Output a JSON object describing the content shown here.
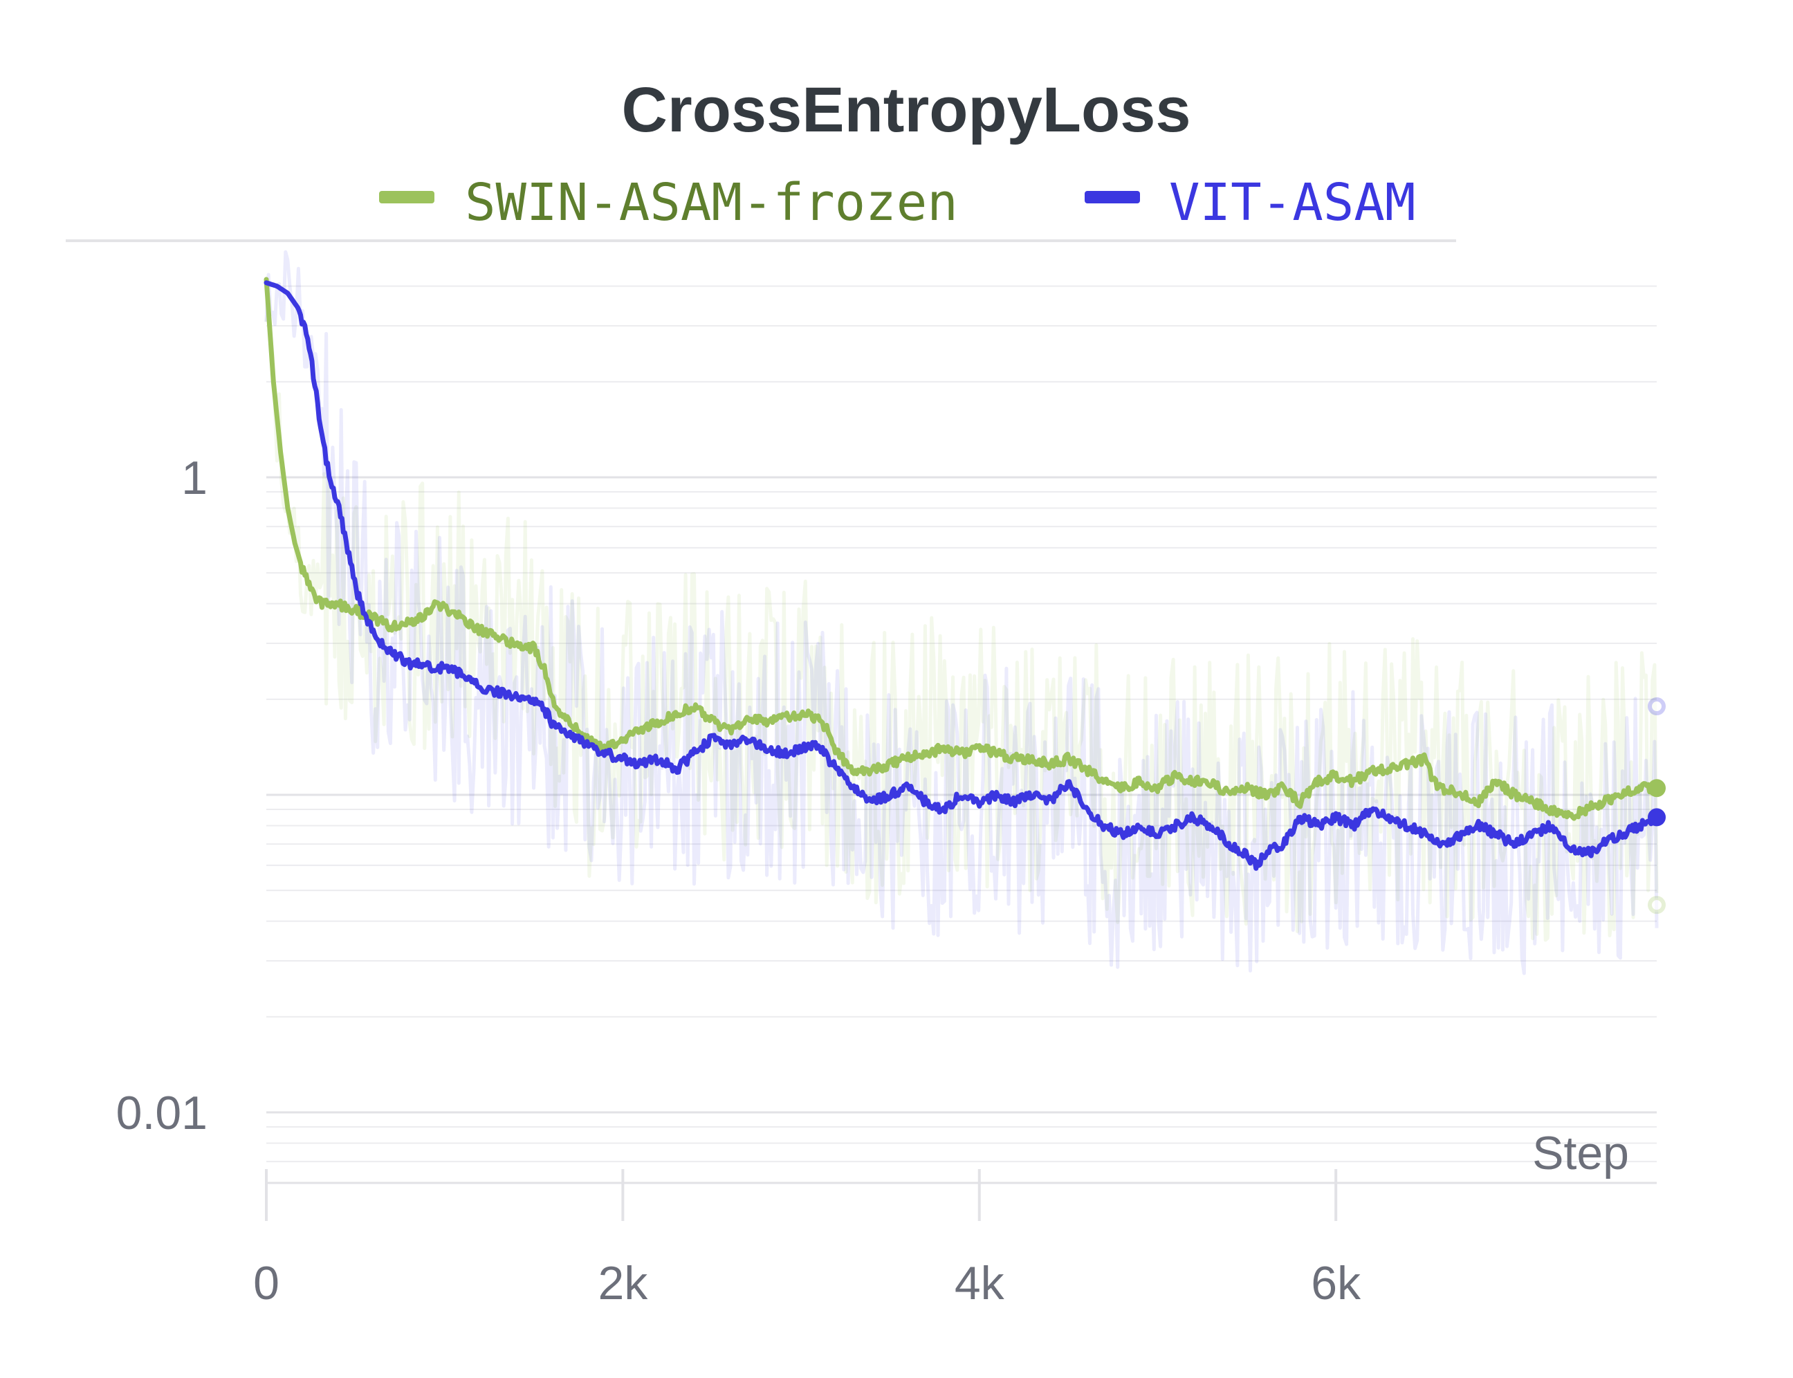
{
  "chart_data": {
    "type": "line",
    "title": "CrossEntropyLoss",
    "xlabel": "Step",
    "ylabel": "",
    "y_scale": "log",
    "xlim": [
      0,
      7800
    ],
    "ylim": [
      0.0055,
      6
    ],
    "x_ticks": [
      {
        "value": 0,
        "label": "0"
      },
      {
        "value": 2000,
        "label": "2k"
      },
      {
        "value": 4000,
        "label": "4k"
      },
      {
        "value": 6000,
        "label": "6k"
      }
    ],
    "y_ticks": [
      {
        "value": 1,
        "label": "1"
      },
      {
        "value": 0.01,
        "label": "0.01"
      }
    ],
    "grid": true,
    "legend_position": "top",
    "series": [
      {
        "name": "SWIN-ASAM-frozen",
        "color": "#9cc25c",
        "label_color": "#5f7f2e",
        "smoothed": [
          [
            0,
            4.2
          ],
          [
            40,
            2.0
          ],
          [
            80,
            1.2
          ],
          [
            120,
            0.8
          ],
          [
            160,
            0.62
          ],
          [
            200,
            0.52
          ],
          [
            240,
            0.46
          ],
          [
            280,
            0.41
          ],
          [
            320,
            0.4
          ],
          [
            400,
            0.4
          ],
          [
            500,
            0.38
          ],
          [
            600,
            0.36
          ],
          [
            700,
            0.34
          ],
          [
            800,
            0.35
          ],
          [
            900,
            0.37
          ],
          [
            960,
            0.4
          ],
          [
            1020,
            0.38
          ],
          [
            1100,
            0.36
          ],
          [
            1200,
            0.33
          ],
          [
            1300,
            0.31
          ],
          [
            1400,
            0.3
          ],
          [
            1500,
            0.29
          ],
          [
            1560,
            0.25
          ],
          [
            1620,
            0.19
          ],
          [
            1700,
            0.17
          ],
          [
            1800,
            0.15
          ],
          [
            1900,
            0.14
          ],
          [
            2000,
            0.15
          ],
          [
            2100,
            0.16
          ],
          [
            2200,
            0.17
          ],
          [
            2300,
            0.18
          ],
          [
            2400,
            0.19
          ],
          [
            2500,
            0.17
          ],
          [
            2600,
            0.16
          ],
          [
            2700,
            0.175
          ],
          [
            2800,
            0.17
          ],
          [
            2900,
            0.175
          ],
          [
            3000,
            0.18
          ],
          [
            3080,
            0.175
          ],
          [
            3150,
            0.16
          ],
          [
            3200,
            0.135
          ],
          [
            3300,
            0.12
          ],
          [
            3400,
            0.12
          ],
          [
            3500,
            0.125
          ],
          [
            3600,
            0.13
          ],
          [
            3700,
            0.135
          ],
          [
            3800,
            0.14
          ],
          [
            3900,
            0.135
          ],
          [
            4000,
            0.14
          ],
          [
            4100,
            0.135
          ],
          [
            4200,
            0.13
          ],
          [
            4300,
            0.13
          ],
          [
            4400,
            0.125
          ],
          [
            4500,
            0.13
          ],
          [
            4600,
            0.12
          ],
          [
            4700,
            0.11
          ],
          [
            4800,
            0.105
          ],
          [
            4900,
            0.11
          ],
          [
            5000,
            0.105
          ],
          [
            5100,
            0.115
          ],
          [
            5200,
            0.11
          ],
          [
            5300,
            0.11
          ],
          [
            5400,
            0.1
          ],
          [
            5500,
            0.105
          ],
          [
            5600,
            0.1
          ],
          [
            5700,
            0.105
          ],
          [
            5800,
            0.095
          ],
          [
            5900,
            0.11
          ],
          [
            6000,
            0.115
          ],
          [
            6100,
            0.11
          ],
          [
            6200,
            0.12
          ],
          [
            6300,
            0.12
          ],
          [
            6400,
            0.125
          ],
          [
            6500,
            0.13
          ],
          [
            6550,
            0.11
          ],
          [
            6600,
            0.105
          ],
          [
            6700,
            0.1
          ],
          [
            6800,
            0.095
          ],
          [
            6900,
            0.11
          ],
          [
            7000,
            0.1
          ],
          [
            7100,
            0.095
          ],
          [
            7200,
            0.09
          ],
          [
            7300,
            0.085
          ],
          [
            7400,
            0.09
          ],
          [
            7500,
            0.095
          ],
          [
            7600,
            0.1
          ],
          [
            7700,
            0.105
          ],
          [
            7800,
            0.105
          ]
        ],
        "last_raw_value": 0.045
      },
      {
        "name": "VIT-ASAM",
        "color": "#3b37e0",
        "label_color": "#3b37e0",
        "smoothed": [
          [
            0,
            4.1
          ],
          [
            60,
            4.0
          ],
          [
            120,
            3.8
          ],
          [
            180,
            3.4
          ],
          [
            230,
            2.8
          ],
          [
            270,
            2.0
          ],
          [
            300,
            1.5
          ],
          [
            340,
            1.1
          ],
          [
            380,
            0.9
          ],
          [
            420,
            0.75
          ],
          [
            460,
            0.58
          ],
          [
            500,
            0.45
          ],
          [
            560,
            0.36
          ],
          [
            620,
            0.31
          ],
          [
            700,
            0.28
          ],
          [
            800,
            0.26
          ],
          [
            900,
            0.255
          ],
          [
            1000,
            0.25
          ],
          [
            1100,
            0.24
          ],
          [
            1200,
            0.22
          ],
          [
            1300,
            0.21
          ],
          [
            1400,
            0.205
          ],
          [
            1500,
            0.2
          ],
          [
            1550,
            0.19
          ],
          [
            1600,
            0.17
          ],
          [
            1700,
            0.155
          ],
          [
            1800,
            0.145
          ],
          [
            1900,
            0.135
          ],
          [
            2000,
            0.13
          ],
          [
            2100,
            0.125
          ],
          [
            2200,
            0.13
          ],
          [
            2300,
            0.12
          ],
          [
            2400,
            0.135
          ],
          [
            2500,
            0.15
          ],
          [
            2600,
            0.145
          ],
          [
            2700,
            0.15
          ],
          [
            2800,
            0.14
          ],
          [
            2900,
            0.135
          ],
          [
            3000,
            0.14
          ],
          [
            3100,
            0.145
          ],
          [
            3150,
            0.13
          ],
          [
            3200,
            0.12
          ],
          [
            3300,
            0.105
          ],
          [
            3400,
            0.095
          ],
          [
            3500,
            0.1
          ],
          [
            3600,
            0.105
          ],
          [
            3700,
            0.095
          ],
          [
            3800,
            0.09
          ],
          [
            3900,
            0.1
          ],
          [
            4000,
            0.095
          ],
          [
            4100,
            0.1
          ],
          [
            4200,
            0.095
          ],
          [
            4300,
            0.1
          ],
          [
            4400,
            0.095
          ],
          [
            4500,
            0.11
          ],
          [
            4600,
            0.09
          ],
          [
            4700,
            0.08
          ],
          [
            4800,
            0.075
          ],
          [
            4900,
            0.08
          ],
          [
            5000,
            0.075
          ],
          [
            5100,
            0.08
          ],
          [
            5200,
            0.085
          ],
          [
            5300,
            0.08
          ],
          [
            5400,
            0.07
          ],
          [
            5500,
            0.065
          ],
          [
            5550,
            0.06
          ],
          [
            5600,
            0.065
          ],
          [
            5700,
            0.07
          ],
          [
            5800,
            0.085
          ],
          [
            5900,
            0.08
          ],
          [
            6000,
            0.085
          ],
          [
            6100,
            0.08
          ],
          [
            6200,
            0.09
          ],
          [
            6300,
            0.085
          ],
          [
            6400,
            0.08
          ],
          [
            6500,
            0.075
          ],
          [
            6600,
            0.07
          ],
          [
            6700,
            0.075
          ],
          [
            6800,
            0.08
          ],
          [
            6900,
            0.075
          ],
          [
            7000,
            0.07
          ],
          [
            7100,
            0.075
          ],
          [
            7200,
            0.08
          ],
          [
            7300,
            0.07
          ],
          [
            7400,
            0.065
          ],
          [
            7500,
            0.07
          ],
          [
            7600,
            0.075
          ],
          [
            7700,
            0.08
          ],
          [
            7800,
            0.085
          ]
        ],
        "last_raw_value": 0.19
      }
    ]
  }
}
